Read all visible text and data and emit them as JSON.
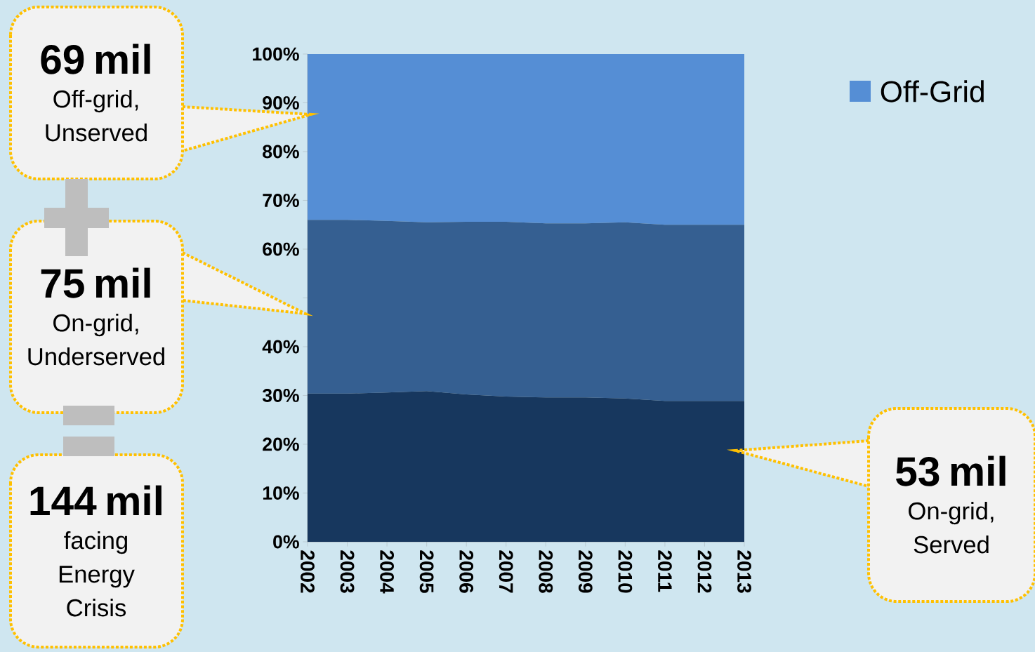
{
  "chart_data": {
    "type": "area",
    "stacked": true,
    "categories": [
      "2002",
      "2003",
      "2004",
      "2005",
      "2006",
      "2007",
      "2008",
      "2009",
      "2010",
      "2011",
      "2012",
      "2013"
    ],
    "series": [
      {
        "color": "#17375e",
        "values": [
          30.4,
          30.4,
          30.6,
          30.9,
          30.2,
          29.8,
          29.6,
          29.6,
          29.4,
          28.9,
          28.9,
          28.9
        ]
      },
      {
        "color": "#355f91",
        "values": [
          35.6,
          35.6,
          35.2,
          34.6,
          35.4,
          35.8,
          35.7,
          35.7,
          36.1,
          36.1,
          36.1,
          36.1
        ]
      },
      {
        "name": "Off-Grid",
        "color": "#558ed5",
        "values": [
          34.0,
          34.0,
          34.2,
          34.5,
          34.4,
          34.4,
          34.7,
          34.7,
          34.5,
          35.0,
          35.0,
          35.0
        ]
      }
    ],
    "ylim": [
      0,
      100
    ],
    "yticks": [
      {
        "value": 0,
        "label": "0%"
      },
      {
        "value": 10,
        "label": "10%"
      },
      {
        "value": 20,
        "label": "20%"
      },
      {
        "value": 30,
        "label": "30%"
      },
      {
        "value": 40,
        "label": "40%"
      },
      {
        "value": 50,
        "label": null
      },
      {
        "value": 60,
        "label": "60%"
      },
      {
        "value": 70,
        "label": "70%"
      },
      {
        "value": 80,
        "label": "80%"
      },
      {
        "value": 90,
        "label": "90%"
      },
      {
        "value": 100,
        "label": "100%"
      }
    ],
    "legend": "top right",
    "annotations": [
      "**69 mil** Off-grid, Unserved",
      "**75 mil** On-grid, Underserved",
      "**144 mil** facing Energy Crisis",
      "**53 mil** On-grid, Served"
    ]
  }
}
